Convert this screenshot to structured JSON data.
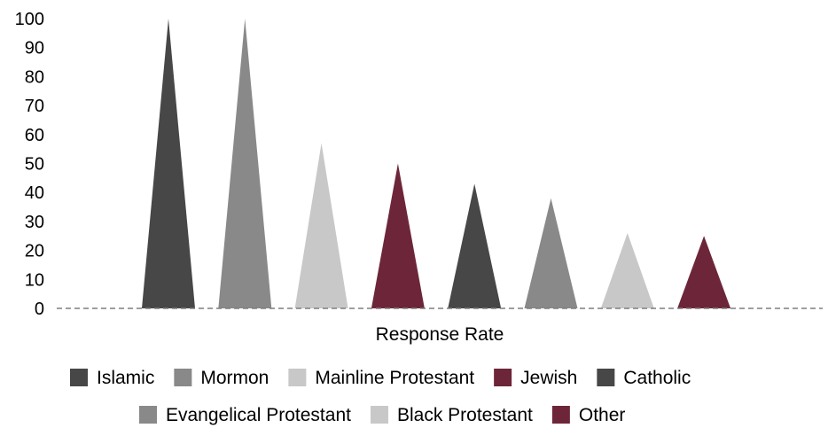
{
  "chart_data": {
    "type": "bar",
    "bar_shape": "triangle",
    "xlabel": "Response Rate",
    "ylabel": "",
    "ylim": [
      0,
      100
    ],
    "yticks": [
      0,
      10,
      20,
      30,
      40,
      50,
      60,
      70,
      80,
      90,
      100
    ],
    "grid": false,
    "legend_position": "bottom",
    "series": [
      {
        "name": "Islamic",
        "value": 100,
        "color": "#474747"
      },
      {
        "name": "Mormon",
        "value": 100,
        "color": "#898989"
      },
      {
        "name": "Mainline Protestant",
        "value": 57,
        "color": "#c8c8c8"
      },
      {
        "name": "Jewish",
        "value": 50,
        "color": "#6d2639"
      },
      {
        "name": "Catholic",
        "value": 43,
        "color": "#474747"
      },
      {
        "name": "Evangelical Protestant",
        "value": 38,
        "color": "#898989"
      },
      {
        "name": "Black Protestant",
        "value": 26,
        "color": "#c8c8c8"
      },
      {
        "name": "Other",
        "value": 25,
        "color": "#6d2639"
      }
    ]
  }
}
